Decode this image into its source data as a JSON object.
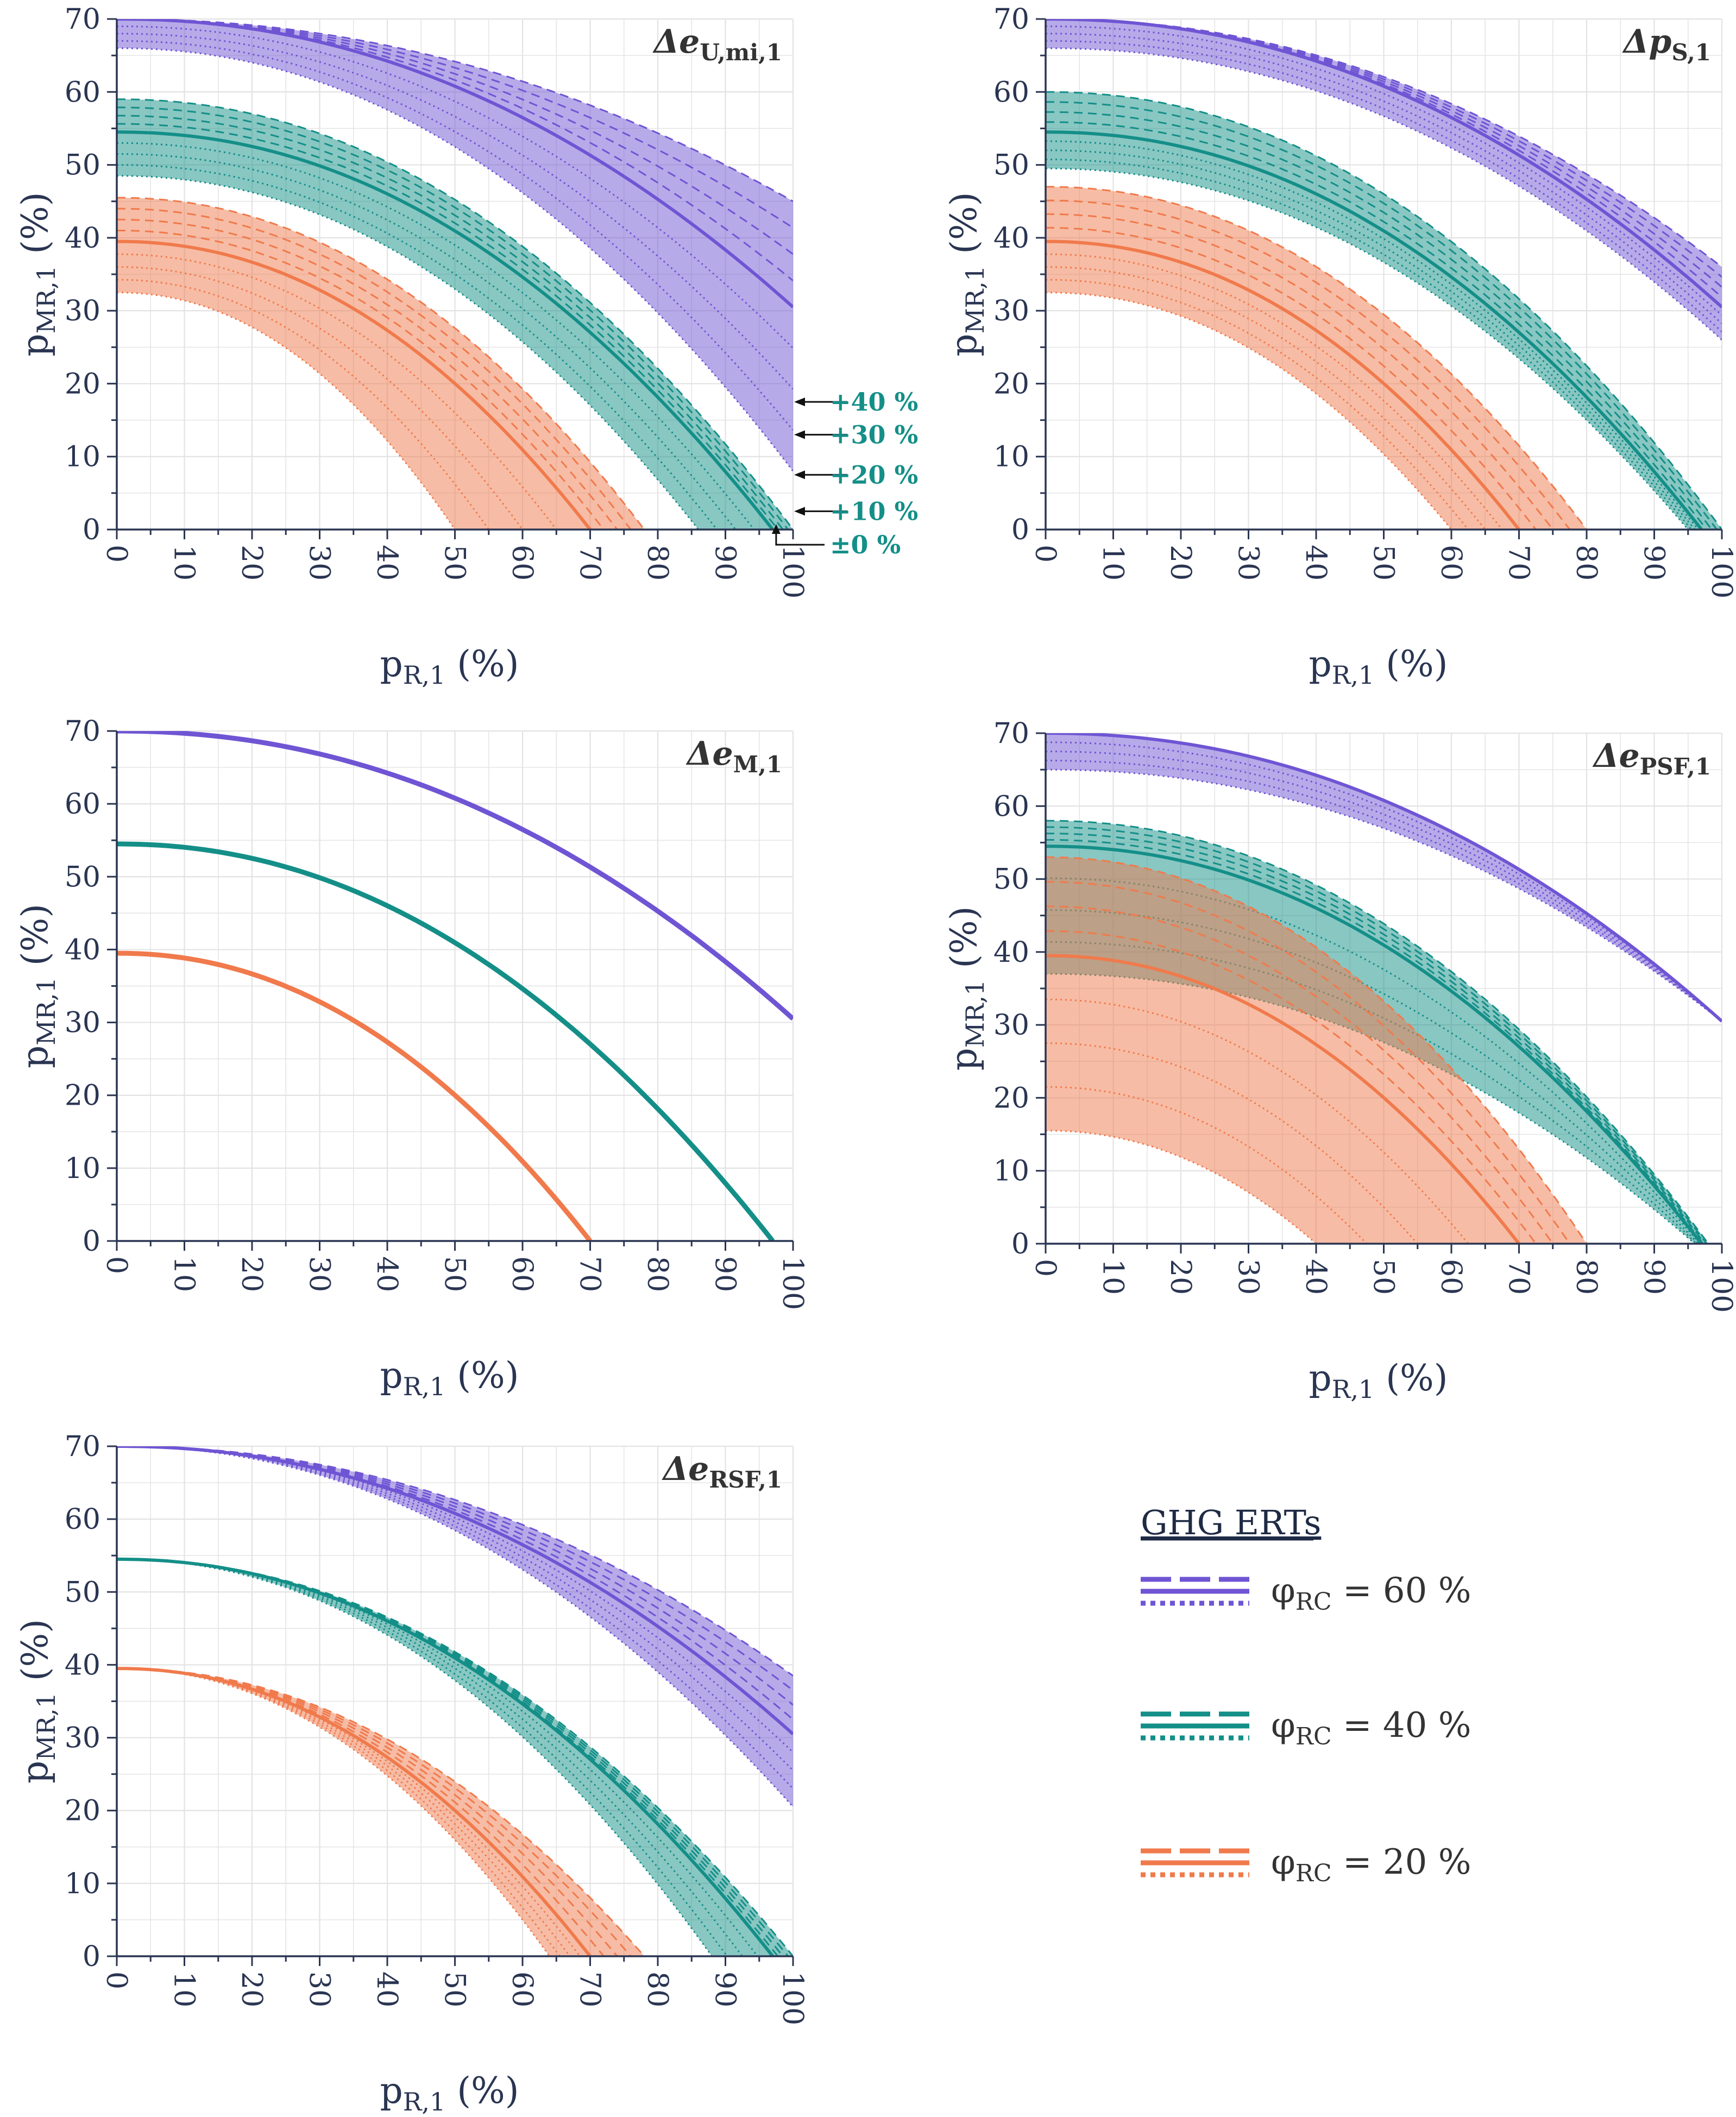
{
  "figure": {
    "annotations": [
      "+40 %",
      "+30 %",
      "+20 %",
      "+10 %",
      "±0 %"
    ]
  },
  "colors": {
    "phi60": "#6f55d4",
    "phi40": "#148f88",
    "phi20": "#f07a4c",
    "axis": "#2a3552",
    "grid": "#e3e3e3"
  },
  "legend": {
    "title": "GHG ERTs",
    "items": [
      {
        "label": "φ",
        "sub": "RC",
        "value": "= 60 %",
        "color_key": "phi60"
      },
      {
        "label": "φ",
        "sub": "RC",
        "value": "= 40 %",
        "color_key": "phi40"
      },
      {
        "label": "φ",
        "sub": "RC",
        "value": "= 20 %",
        "color_key": "phi20"
      }
    ]
  },
  "chart_data": [
    {
      "type": "line",
      "panel_id": "a",
      "title": "Δe",
      "title_sub": "U,mi,1",
      "xlabel": "p",
      "xlabel_sub": "R,1",
      "xlabel_unit": "(%)",
      "ylabel": "p",
      "ylabel_sub": "MR,1",
      "ylabel_unit": "(%)",
      "xlim": [
        0,
        100
      ],
      "ylim": [
        0,
        70
      ],
      "xticks": [
        0,
        10,
        20,
        30,
        40,
        50,
        60,
        70,
        80,
        90,
        100
      ],
      "yticks": [
        0,
        10,
        20,
        30,
        40,
        50,
        60,
        70
      ],
      "series": [
        {
          "name": "φRC = 60 %",
          "color_key": "phi60",
          "baseline": [
            70,
            30.5
          ],
          "band_upper": [
            70,
            45
          ],
          "band_lower": [
            66,
            8
          ]
        },
        {
          "name": "φRC = 40 %",
          "color_key": "phi40",
          "baseline": [
            54.5,
            97
          ],
          "band_upper": [
            59,
            100
          ],
          "band_lower": [
            48.5,
            86
          ]
        },
        {
          "name": "φRC = 20 %",
          "color_key": "phi20",
          "baseline": [
            39.5,
            70
          ],
          "band_upper": [
            45.5,
            78
          ],
          "band_lower": [
            32.5,
            50
          ]
        }
      ]
    },
    {
      "type": "line",
      "panel_id": "b",
      "title": "Δp",
      "title_sub": "S,1",
      "xlabel": "p",
      "xlabel_sub": "R,1",
      "xlabel_unit": "(%)",
      "ylabel": "p",
      "ylabel_sub": "MR,1",
      "ylabel_unit": "(%)",
      "xlim": [
        0,
        100
      ],
      "ylim": [
        0,
        70
      ],
      "xticks": [
        0,
        10,
        20,
        30,
        40,
        50,
        60,
        70,
        80,
        90,
        100
      ],
      "yticks": [
        0,
        10,
        20,
        30,
        40,
        50,
        60,
        70
      ],
      "series": [
        {
          "name": "φRC = 60 %",
          "color_key": "phi60",
          "baseline": [
            70,
            30.5
          ],
          "band_upper": [
            70,
            36
          ],
          "band_lower": [
            66,
            26
          ]
        },
        {
          "name": "φRC = 40 %",
          "color_key": "phi40",
          "baseline": [
            54.5,
            97
          ],
          "band_upper": [
            60,
            100
          ],
          "band_lower": [
            49.5,
            95
          ]
        },
        {
          "name": "φRC = 20 %",
          "color_key": "phi20",
          "baseline": [
            39.5,
            70
          ],
          "band_upper": [
            47,
            80
          ],
          "band_lower": [
            32.5,
            60
          ]
        }
      ]
    },
    {
      "type": "line",
      "panel_id": "c",
      "title": "Δe",
      "title_sub": "M,1",
      "xlabel": "p",
      "xlabel_sub": "R,1",
      "xlabel_unit": "(%)",
      "ylabel": "p",
      "ylabel_sub": "MR,1",
      "ylabel_unit": "(%)",
      "xlim": [
        0,
        100
      ],
      "ylim": [
        0,
        70
      ],
      "xticks": [
        0,
        10,
        20,
        30,
        40,
        50,
        60,
        70,
        80,
        90,
        100
      ],
      "yticks": [
        0,
        10,
        20,
        30,
        40,
        50,
        60,
        70
      ],
      "series": [
        {
          "name": "φRC = 60 %",
          "color_key": "phi60",
          "baseline": [
            70,
            30.5
          ],
          "band_upper": [
            70,
            30.5
          ],
          "band_lower": [
            70,
            30.5
          ]
        },
        {
          "name": "φRC = 40 %",
          "color_key": "phi40",
          "baseline": [
            54.5,
            97
          ],
          "band_upper": [
            54.5,
            97
          ],
          "band_lower": [
            54.5,
            97
          ]
        },
        {
          "name": "φRC = 20 %",
          "color_key": "phi20",
          "baseline": [
            39.5,
            70
          ],
          "band_upper": [
            39.5,
            70
          ],
          "band_lower": [
            39.5,
            70
          ]
        }
      ]
    },
    {
      "type": "line",
      "panel_id": "d",
      "title": "Δe",
      "title_sub": "PSF,1",
      "xlabel": "p",
      "xlabel_sub": "R,1",
      "xlabel_unit": "(%)",
      "ylabel": "p",
      "ylabel_sub": "MR,1",
      "ylabel_unit": "(%)",
      "xlim": [
        0,
        100
      ],
      "ylim": [
        0,
        70
      ],
      "xticks": [
        0,
        10,
        20,
        30,
        40,
        50,
        60,
        70,
        80,
        90,
        100
      ],
      "yticks": [
        0,
        10,
        20,
        30,
        40,
        50,
        60,
        70
      ],
      "series": [
        {
          "name": "φRC = 60 %",
          "color_key": "phi60",
          "baseline": [
            70,
            30.5
          ],
          "band_upper": [
            70,
            30.5
          ],
          "band_lower": [
            65,
            30.5
          ]
        },
        {
          "name": "φRC = 40 %",
          "color_key": "phi40",
          "baseline": [
            54.5,
            97
          ],
          "band_upper": [
            58,
            98
          ],
          "band_lower": [
            37,
            96
          ]
        },
        {
          "name": "φRC = 20 %",
          "color_key": "phi20",
          "baseline": [
            39.5,
            70
          ],
          "band_upper": [
            53,
            80
          ],
          "band_lower": [
            15.5,
            40
          ]
        }
      ]
    },
    {
      "type": "line",
      "panel_id": "e",
      "title": "Δe",
      "title_sub": "RSF,1",
      "xlabel": "p",
      "xlabel_sub": "R,1",
      "xlabel_unit": "(%)",
      "ylabel": "p",
      "ylabel_sub": "MR,1",
      "ylabel_unit": "(%)",
      "xlim": [
        0,
        100
      ],
      "ylim": [
        0,
        70
      ],
      "xticks": [
        0,
        10,
        20,
        30,
        40,
        50,
        60,
        70,
        80,
        90,
        100
      ],
      "yticks": [
        0,
        10,
        20,
        30,
        40,
        50,
        60,
        70
      ],
      "series": [
        {
          "name": "φRC = 60 %",
          "color_key": "phi60",
          "baseline": [
            70,
            30.5
          ],
          "band_upper": [
            70,
            38.5
          ],
          "band_lower": [
            70,
            20.5
          ]
        },
        {
          "name": "φRC = 40 %",
          "color_key": "phi40",
          "baseline": [
            54.5,
            97
          ],
          "band_upper": [
            54.5,
            100
          ],
          "band_lower": [
            54.5,
            88
          ]
        },
        {
          "name": "φRC = 20 %",
          "color_key": "phi20",
          "baseline": [
            39.5,
            70
          ],
          "band_upper": [
            39.5,
            78
          ],
          "band_lower": [
            39.5,
            64
          ]
        }
      ]
    }
  ]
}
